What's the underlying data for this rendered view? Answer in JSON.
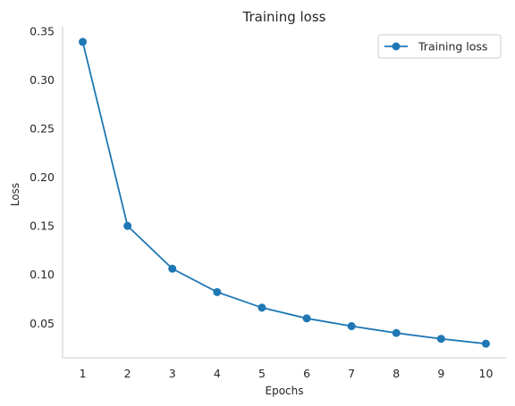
{
  "chart_data": {
    "type": "line",
    "title": "Training  loss",
    "xlabel": "Epochs",
    "ylabel": "Loss",
    "x": [
      1,
      2,
      3,
      4,
      5,
      6,
      7,
      8,
      9,
      10
    ],
    "series": [
      {
        "name": "Training loss",
        "color": "#1f77b4",
        "values": [
          0.339,
          0.15,
          0.106,
          0.082,
          0.066,
          0.055,
          0.047,
          0.04,
          0.034,
          0.029
        ]
      }
    ],
    "xlim": [
      0.55,
      10.45
    ],
    "ylim": [
      0.0145,
      0.3545
    ],
    "xticks": [
      "1",
      "2",
      "3",
      "4",
      "5",
      "6",
      "7",
      "8",
      "9",
      "10"
    ],
    "yticks": [
      "0.05",
      "0.10",
      "0.15",
      "0.20",
      "0.25",
      "0.30",
      "0.35"
    ],
    "grid": false,
    "legend_position": "top-right"
  }
}
